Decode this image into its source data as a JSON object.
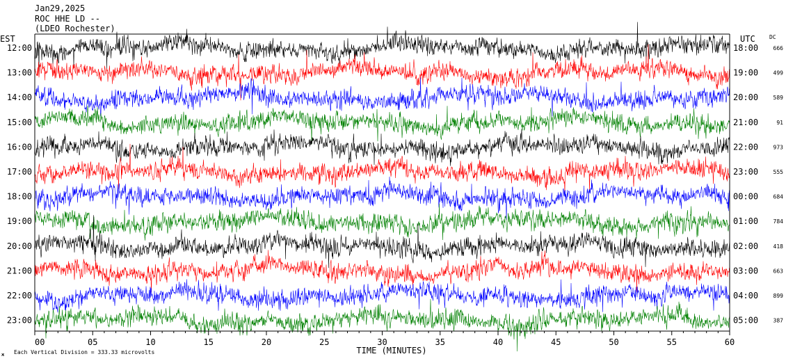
{
  "header": {
    "date": "Jan29,2025",
    "station": "ROC HHE LD --",
    "location": "(LDEO Rochester)"
  },
  "left_axis_label": "EST",
  "right_axis_label": "UTC",
  "dc_label": "DC",
  "scale_note": "Each Vertical Division = 333.33 microvolts",
  "corner_mark": "ж",
  "x_axis_label": "TIME (MINUTES)",
  "colors": {
    "trace_cycle": [
      "#000000",
      "#ff0000",
      "#0000ff",
      "#008000"
    ],
    "background": "#ffffff",
    "frame": "#000000"
  },
  "chart_data": {
    "type": "line",
    "title": "ROC HHE LD --",
    "xlabel": "TIME (MINUTES)",
    "xlim": [
      0,
      60
    ],
    "x_ticks": [
      "00",
      "05",
      "10",
      "15",
      "20",
      "25",
      "30",
      "35",
      "40",
      "45",
      "50",
      "55",
      "60"
    ],
    "rows": [
      {
        "est": "12:00",
        "utc": "18:00",
        "dc": "666",
        "color": "#000000"
      },
      {
        "est": "13:00",
        "utc": "19:00",
        "dc": "499",
        "color": "#ff0000"
      },
      {
        "est": "14:00",
        "utc": "20:00",
        "dc": "589",
        "color": "#0000ff"
      },
      {
        "est": "15:00",
        "utc": "21:00",
        "dc": "91",
        "color": "#008000"
      },
      {
        "est": "16:00",
        "utc": "22:00",
        "dc": "973",
        "color": "#000000"
      },
      {
        "est": "17:00",
        "utc": "23:00",
        "dc": "555",
        "color": "#ff0000"
      },
      {
        "est": "18:00",
        "utc": "00:00",
        "dc": "684",
        "color": "#0000ff"
      },
      {
        "est": "19:00",
        "utc": "01:00",
        "dc": "784",
        "color": "#008000"
      },
      {
        "est": "20:00",
        "utc": "02:00",
        "dc": "418",
        "color": "#000000"
      },
      {
        "est": "21:00",
        "utc": "03:00",
        "dc": "663",
        "color": "#ff0000"
      },
      {
        "est": "22:00",
        "utc": "04:00",
        "dc": "899",
        "color": "#0000ff"
      },
      {
        "est": "23:00",
        "utc": "05:00",
        "dc": "387",
        "color": "#008000"
      }
    ]
  }
}
